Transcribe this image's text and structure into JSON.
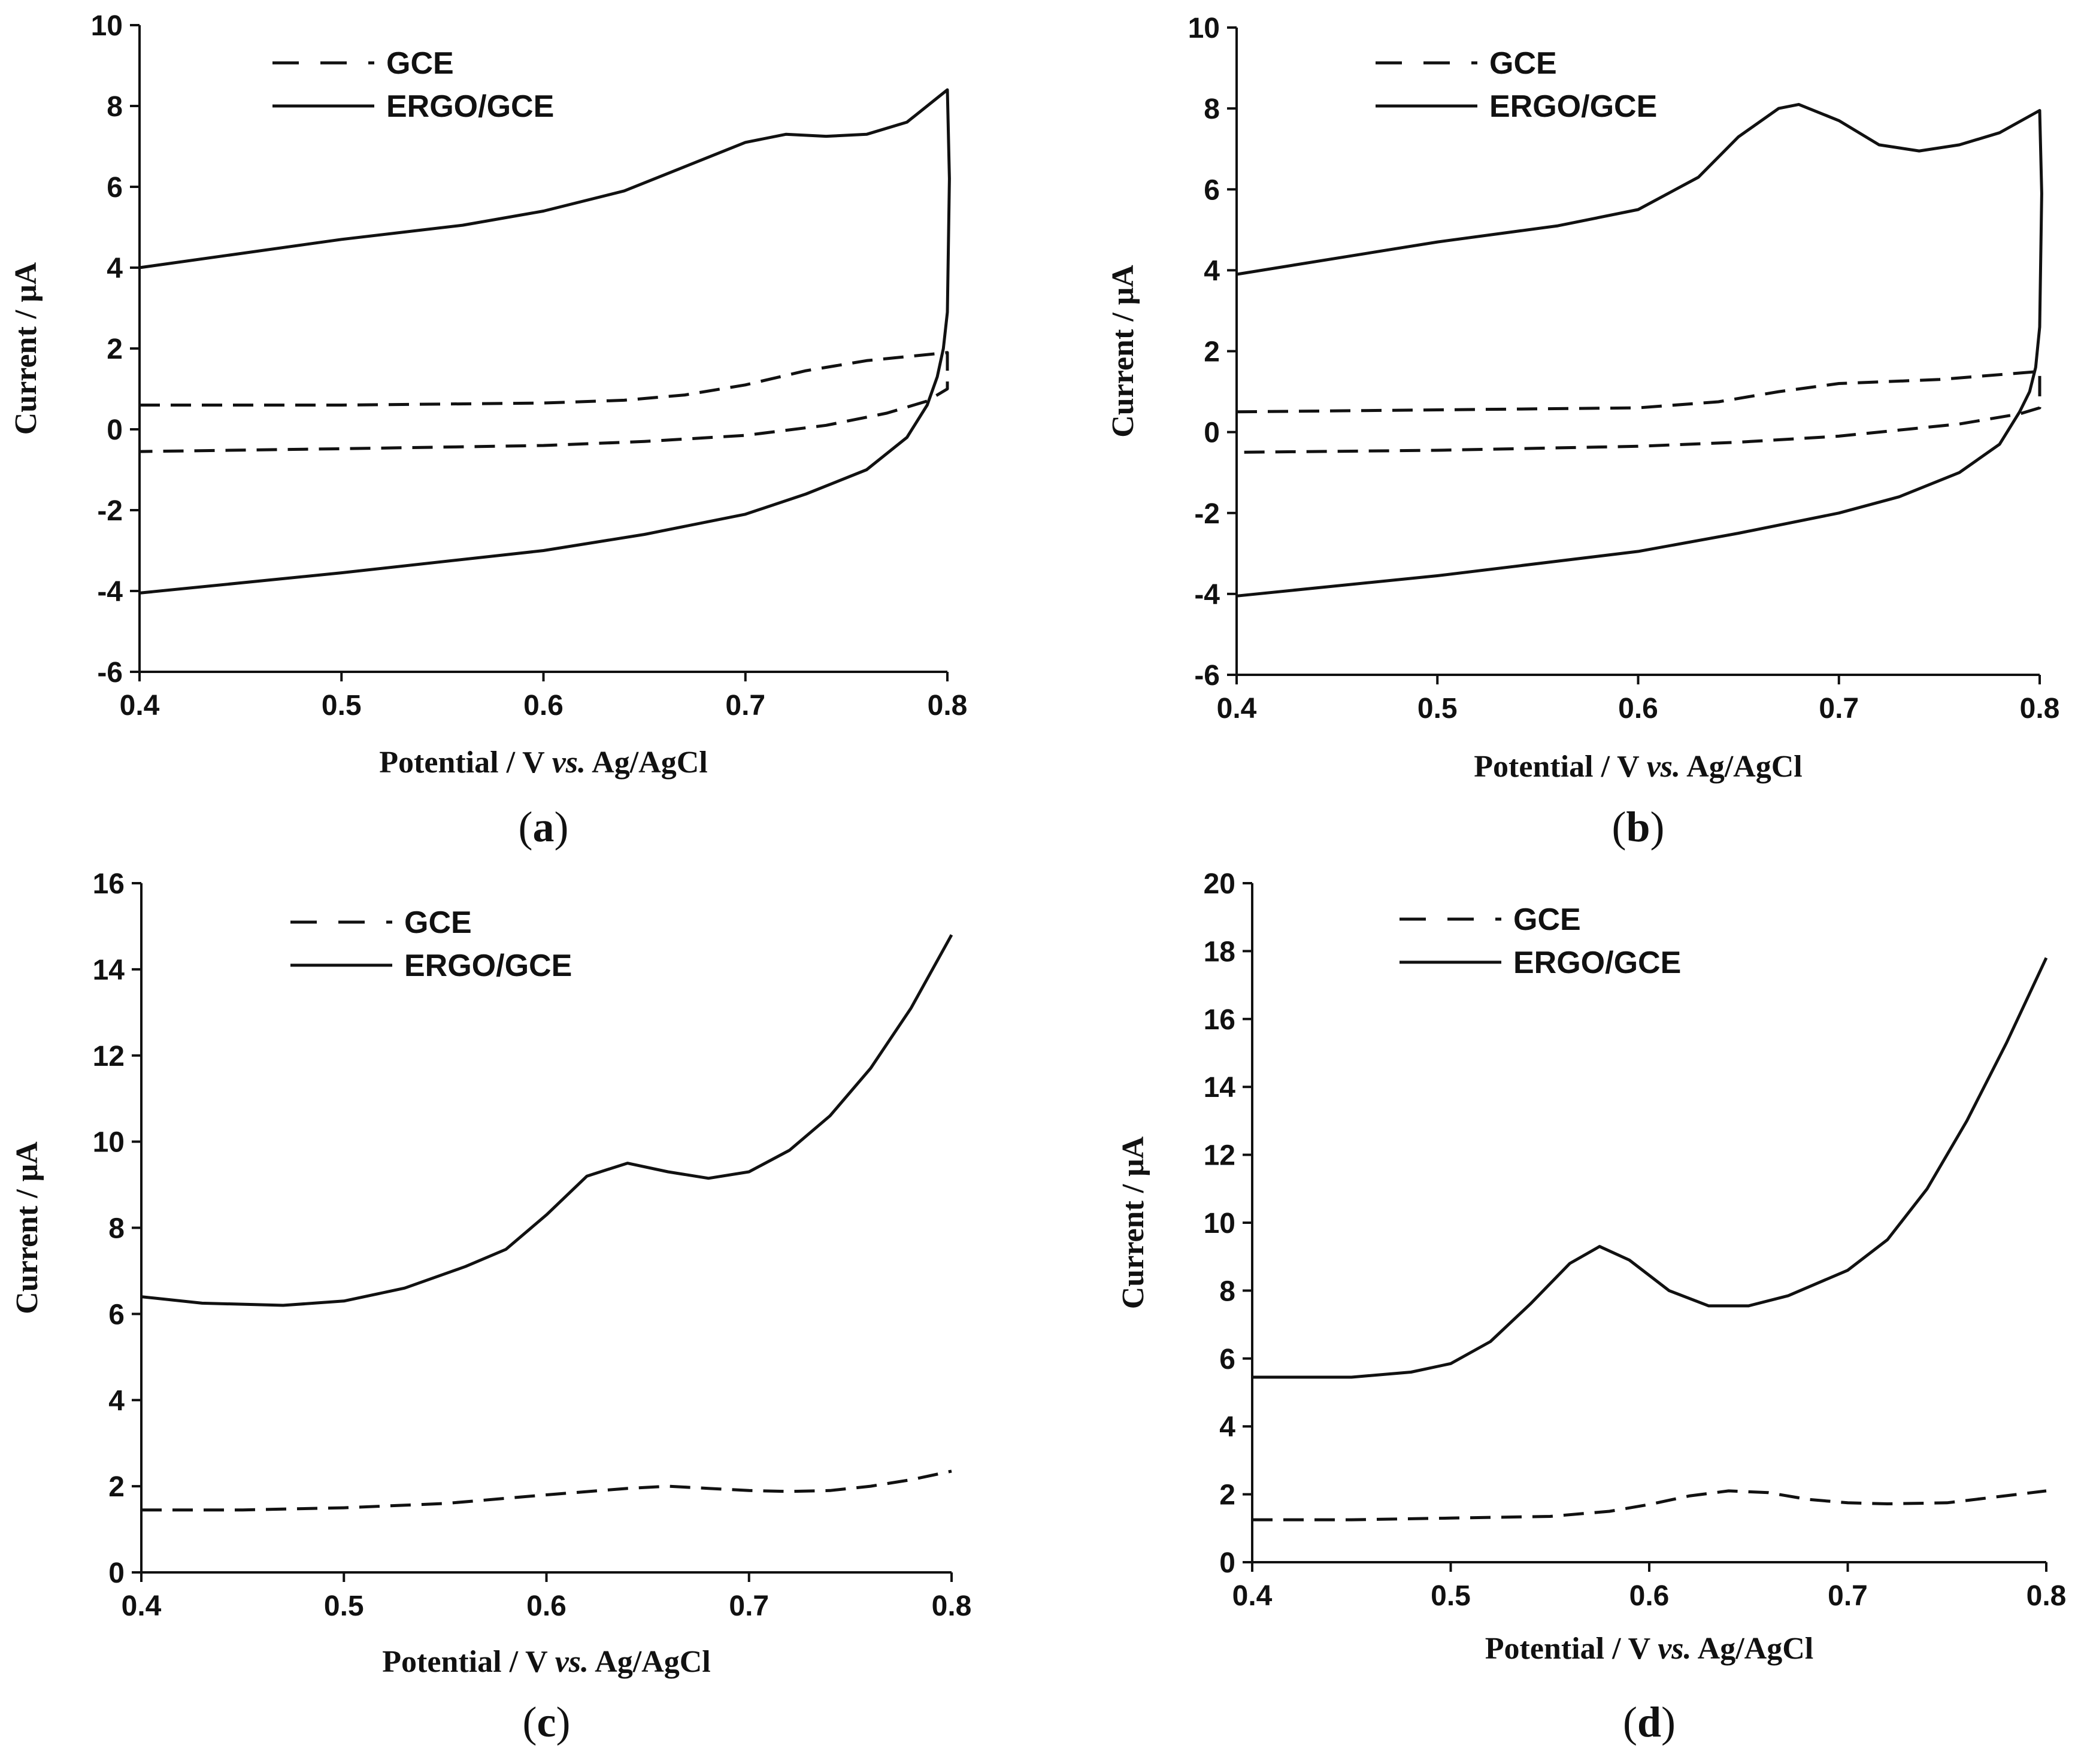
{
  "chart_data": [
    {
      "type": "line",
      "panel_label": "a",
      "xlabel_prefix": "Potential / V ",
      "xlabel_italic": "vs.",
      "xlabel_suffix": " Ag/AgCl",
      "ylabel": "Current / μA",
      "xlim": [
        0.4,
        0.8
      ],
      "ylim": [
        -6,
        10
      ],
      "xticks": [
        "0.4",
        "0.5",
        "0.6",
        "0.7",
        "0.8"
      ],
      "yticks": [
        "-6",
        "-4",
        "-2",
        "0",
        "2",
        "4",
        "6",
        "8",
        "10"
      ],
      "legend": [
        {
          "label": "GCE",
          "style": "dashed"
        },
        {
          "label": "ERGO/GCE",
          "style": "solid"
        }
      ],
      "series": [
        {
          "name": "GCE",
          "style": "dashed",
          "x": [
            0.4,
            0.5,
            0.6,
            0.64,
            0.67,
            0.7,
            0.73,
            0.76,
            0.8,
            0.8,
            0.79,
            0.77,
            0.74,
            0.7,
            0.65,
            0.6,
            0.5,
            0.4
          ],
          "y": [
            0.6,
            0.6,
            0.65,
            0.72,
            0.85,
            1.1,
            1.45,
            1.7,
            1.9,
            1.0,
            0.7,
            0.4,
            0.1,
            -0.15,
            -0.3,
            -0.4,
            -0.48,
            -0.55
          ]
        },
        {
          "name": "ERGO/GCE",
          "style": "solid",
          "x": [
            0.4,
            0.5,
            0.56,
            0.6,
            0.64,
            0.67,
            0.7,
            0.72,
            0.74,
            0.76,
            0.78,
            0.795,
            0.8,
            0.801,
            0.8,
            0.798,
            0.795,
            0.79,
            0.78,
            0.76,
            0.73,
            0.7,
            0.65,
            0.6,
            0.5,
            0.4
          ],
          "y": [
            4.0,
            4.7,
            5.05,
            5.4,
            5.9,
            6.5,
            7.1,
            7.3,
            7.25,
            7.3,
            7.6,
            8.2,
            8.4,
            6.2,
            2.9,
            2.0,
            1.3,
            0.6,
            -0.2,
            -1.0,
            -1.6,
            -2.1,
            -2.6,
            -3.0,
            -3.55,
            -4.05
          ]
        }
      ]
    },
    {
      "type": "line",
      "panel_label": "b",
      "xlabel_prefix": "Potential / V ",
      "xlabel_italic": "vs.",
      "xlabel_suffix": " Ag/AgCl",
      "ylabel": "Current / μA",
      "xlim": [
        0.4,
        0.8
      ],
      "ylim": [
        -6,
        10
      ],
      "xticks": [
        "0.4",
        "0.5",
        "0.6",
        "0.7",
        "0.8"
      ],
      "yticks": [
        "-6",
        "-4",
        "-2",
        "0",
        "2",
        "4",
        "6",
        "8",
        "10"
      ],
      "legend": [
        {
          "label": "GCE",
          "style": "dashed"
        },
        {
          "label": "ERGO/GCE",
          "style": "solid"
        }
      ],
      "series": [
        {
          "name": "GCE",
          "style": "dashed",
          "x": [
            0.4,
            0.5,
            0.6,
            0.64,
            0.67,
            0.7,
            0.75,
            0.8,
            0.8,
            0.79,
            0.76,
            0.7,
            0.65,
            0.6,
            0.5,
            0.4
          ],
          "y": [
            0.5,
            0.55,
            0.6,
            0.75,
            1.0,
            1.2,
            1.3,
            1.5,
            0.6,
            0.45,
            0.2,
            -0.1,
            -0.25,
            -0.35,
            -0.45,
            -0.5
          ]
        },
        {
          "name": "ERGO/GCE",
          "style": "solid",
          "x": [
            0.4,
            0.5,
            0.56,
            0.6,
            0.63,
            0.65,
            0.67,
            0.68,
            0.7,
            0.72,
            0.74,
            0.76,
            0.78,
            0.8,
            0.801,
            0.8,
            0.798,
            0.795,
            0.79,
            0.78,
            0.76,
            0.73,
            0.7,
            0.65,
            0.6,
            0.5,
            0.4
          ],
          "y": [
            3.9,
            4.7,
            5.1,
            5.5,
            6.3,
            7.3,
            8.0,
            8.1,
            7.7,
            7.1,
            6.95,
            7.1,
            7.4,
            7.95,
            5.9,
            2.6,
            1.6,
            1.0,
            0.5,
            -0.3,
            -1.0,
            -1.6,
            -2.0,
            -2.5,
            -2.95,
            -3.55,
            -4.05
          ]
        }
      ]
    },
    {
      "type": "line",
      "panel_label": "c",
      "xlabel_prefix": "Potential / V ",
      "xlabel_italic": "vs.",
      "xlabel_suffix": " Ag/AgCl",
      "ylabel": "Current / μA",
      "xlim": [
        0.4,
        0.8
      ],
      "ylim": [
        0,
        16
      ],
      "xticks": [
        "0.4",
        "0.5",
        "0.6",
        "0.7",
        "0.8"
      ],
      "yticks": [
        "0",
        "2",
        "4",
        "6",
        "8",
        "10",
        "12",
        "14",
        "16"
      ],
      "legend": [
        {
          "label": "GCE",
          "style": "dashed"
        },
        {
          "label": "ERGO/GCE",
          "style": "solid"
        }
      ],
      "series": [
        {
          "name": "GCE",
          "style": "dashed",
          "x": [
            0.4,
            0.45,
            0.5,
            0.55,
            0.6,
            0.64,
            0.66,
            0.68,
            0.7,
            0.72,
            0.74,
            0.76,
            0.78,
            0.8
          ],
          "y": [
            1.45,
            1.45,
            1.5,
            1.6,
            1.8,
            1.95,
            2.0,
            1.95,
            1.9,
            1.88,
            1.9,
            2.0,
            2.15,
            2.35
          ]
        },
        {
          "name": "ERGO/GCE",
          "style": "solid",
          "x": [
            0.4,
            0.43,
            0.47,
            0.5,
            0.53,
            0.56,
            0.58,
            0.6,
            0.62,
            0.64,
            0.66,
            0.68,
            0.7,
            0.72,
            0.74,
            0.76,
            0.78,
            0.8
          ],
          "y": [
            6.4,
            6.25,
            6.2,
            6.3,
            6.6,
            7.1,
            7.5,
            8.3,
            9.2,
            9.5,
            9.3,
            9.15,
            9.3,
            9.8,
            10.6,
            11.7,
            13.1,
            14.8
          ]
        }
      ]
    },
    {
      "type": "line",
      "panel_label": "d",
      "xlabel_prefix": "Potential / V ",
      "xlabel_italic": "vs.",
      "xlabel_suffix": " Ag/AgCl",
      "ylabel": "Current / μA",
      "xlim": [
        0.4,
        0.8
      ],
      "ylim": [
        0,
        20
      ],
      "xticks": [
        "0.4",
        "0.5",
        "0.6",
        "0.7",
        "0.8"
      ],
      "yticks": [
        "0",
        "2",
        "4",
        "6",
        "8",
        "10",
        "12",
        "14",
        "16",
        "18",
        "20"
      ],
      "legend": [
        {
          "label": "GCE",
          "style": "dashed"
        },
        {
          "label": "ERGO/GCE",
          "style": "solid"
        }
      ],
      "series": [
        {
          "name": "GCE",
          "style": "dashed",
          "x": [
            0.4,
            0.45,
            0.5,
            0.55,
            0.58,
            0.6,
            0.62,
            0.64,
            0.66,
            0.68,
            0.7,
            0.72,
            0.75,
            0.8
          ],
          "y": [
            1.25,
            1.25,
            1.3,
            1.35,
            1.5,
            1.7,
            1.95,
            2.1,
            2.05,
            1.85,
            1.75,
            1.72,
            1.75,
            2.1
          ]
        },
        {
          "name": "ERGO/GCE",
          "style": "solid",
          "x": [
            0.4,
            0.45,
            0.48,
            0.5,
            0.52,
            0.54,
            0.56,
            0.575,
            0.59,
            0.61,
            0.63,
            0.65,
            0.67,
            0.7,
            0.72,
            0.74,
            0.76,
            0.78,
            0.8
          ],
          "y": [
            5.45,
            5.45,
            5.6,
            5.85,
            6.5,
            7.6,
            8.8,
            9.3,
            8.9,
            8.0,
            7.55,
            7.55,
            7.85,
            8.6,
            9.5,
            11.0,
            13.0,
            15.3,
            17.8
          ]
        }
      ]
    }
  ]
}
